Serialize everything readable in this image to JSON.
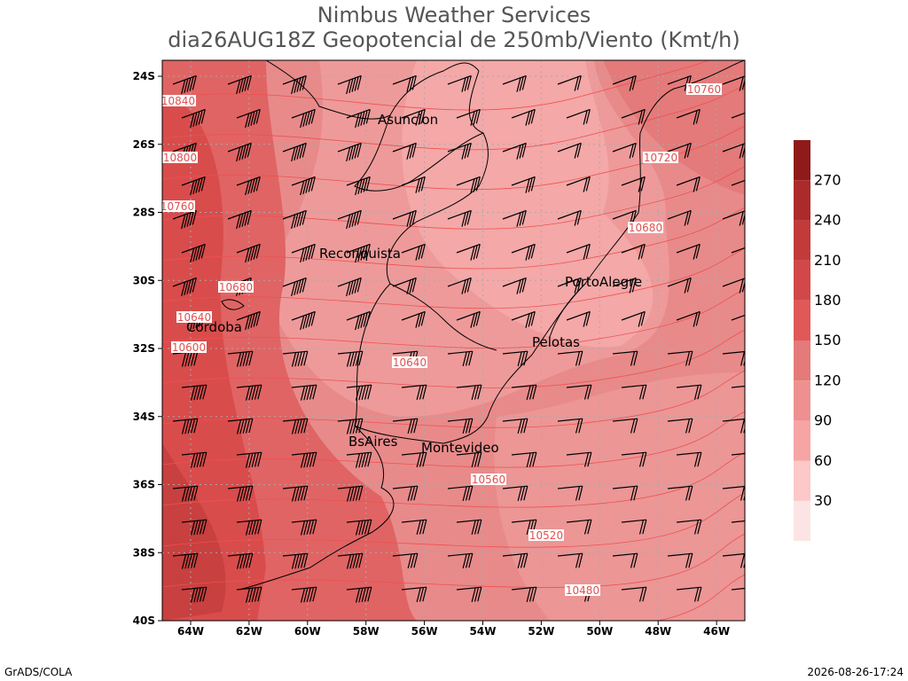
{
  "header": {
    "title": "Nimbus Weather Services",
    "subtitle": "dia26AUG18Z Geopotencial de 250mb/Viento (Kmt/h)"
  },
  "lat_ticks": [
    "24S",
    "26S",
    "28S",
    "30S",
    "32S",
    "34S",
    "36S",
    "38S",
    "40S"
  ],
  "lon_ticks": [
    "64W",
    "62W",
    "60W",
    "58W",
    "56W",
    "54W",
    "52W",
    "50W",
    "48W",
    "46W"
  ],
  "colorbar": [
    "30",
    "60",
    "90",
    "120",
    "150",
    "180",
    "210",
    "240",
    "270"
  ],
  "cities": [
    "Asuncion",
    "Reconquista",
    "PortoAlegre",
    "Cordoba",
    "Pelotas",
    "BsAires",
    "Montevideo"
  ],
  "contours": [
    "10840",
    "10800",
    "10760",
    "10680",
    "10640",
    "10600",
    "10640",
    "10560",
    "10520",
    "10480",
    "10760",
    "10720",
    "10680"
  ],
  "footer": {
    "left": "GrADS/COLA",
    "right": "2026-08-26-17:24"
  }
}
